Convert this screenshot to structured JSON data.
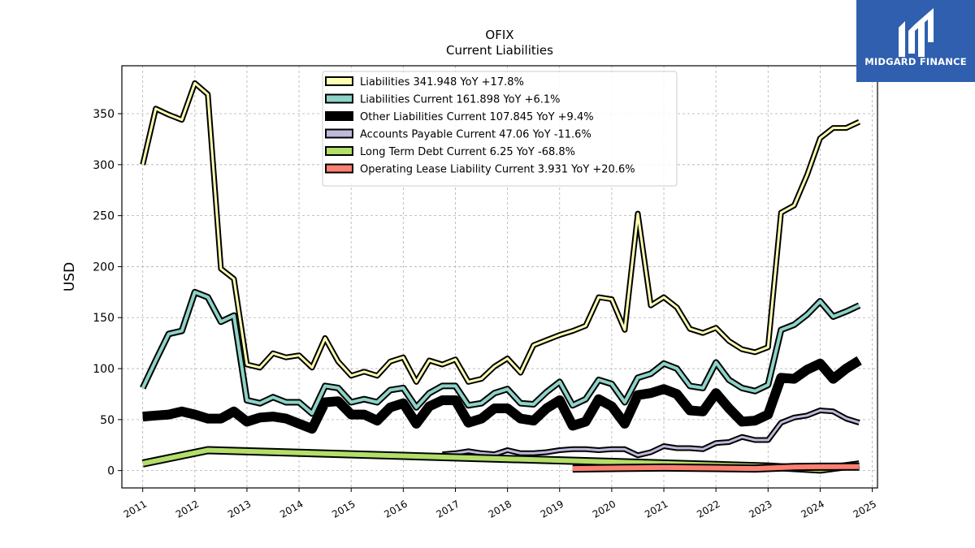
{
  "brand": {
    "name": "MIDGARD FINANCE",
    "logo_icon": "midgard-logo-icon",
    "color": "#2f5fae"
  },
  "chart_data": {
    "type": "line",
    "title": "OFIX",
    "subtitle": "Current  Liabilities",
    "xlabel": "",
    "ylabel": "USD",
    "xlim": [
      2010.6,
      2025.1
    ],
    "ylim": [
      -17,
      397
    ],
    "x_ticks": [
      "2011",
      "2012",
      "2013",
      "2014",
      "2015",
      "2016",
      "2017",
      "2018",
      "2019",
      "2020",
      "2021",
      "2022",
      "2023",
      "2024",
      "2025"
    ],
    "y_ticks": [
      "0",
      "50",
      "100",
      "150",
      "200",
      "250",
      "300",
      "350"
    ],
    "grid": true,
    "legend_position": "top-center",
    "series": [
      {
        "name": "Liabilities  341.948 YoY +17.8%",
        "color": "#ffffb3",
        "width": 3,
        "points": [
          [
            2011.0,
            300
          ],
          [
            2011.25,
            355
          ],
          [
            2011.5,
            349
          ],
          [
            2011.75,
            344
          ],
          [
            2012.0,
            380
          ],
          [
            2012.25,
            369
          ],
          [
            2012.5,
            198
          ],
          [
            2012.75,
            188
          ],
          [
            2013.0,
            104
          ],
          [
            2013.25,
            101
          ],
          [
            2013.5,
            115
          ],
          [
            2013.75,
            111
          ],
          [
            2014.0,
            113
          ],
          [
            2014.25,
            101
          ],
          [
            2014.5,
            130
          ],
          [
            2014.75,
            107
          ],
          [
            2015.0,
            93
          ],
          [
            2015.25,
            97
          ],
          [
            2015.5,
            93
          ],
          [
            2015.75,
            107
          ],
          [
            2016.0,
            111
          ],
          [
            2016.25,
            87
          ],
          [
            2016.5,
            108
          ],
          [
            2016.75,
            104
          ],
          [
            2017.0,
            109
          ],
          [
            2017.25,
            87
          ],
          [
            2017.5,
            90
          ],
          [
            2017.75,
            102
          ],
          [
            2018.0,
            110
          ],
          [
            2018.25,
            96
          ],
          [
            2018.5,
            123
          ],
          [
            2018.75,
            128
          ],
          [
            2019.0,
            133
          ],
          [
            2019.25,
            137
          ],
          [
            2019.5,
            142
          ],
          [
            2019.75,
            170
          ],
          [
            2020.0,
            168
          ],
          [
            2020.25,
            138
          ],
          [
            2020.5,
            252
          ],
          [
            2020.75,
            162
          ],
          [
            2021.0,
            170
          ],
          [
            2021.25,
            160
          ],
          [
            2021.5,
            139
          ],
          [
            2021.75,
            135
          ],
          [
            2022.0,
            140
          ],
          [
            2022.25,
            127
          ],
          [
            2022.5,
            119
          ],
          [
            2022.75,
            116
          ],
          [
            2023.0,
            121
          ],
          [
            2023.25,
            253
          ],
          [
            2023.5,
            260
          ],
          [
            2023.75,
            290
          ],
          [
            2024.0,
            326
          ],
          [
            2024.25,
            336
          ],
          [
            2024.5,
            336
          ],
          [
            2024.75,
            342
          ]
        ]
      },
      {
        "name": "Liabilities Current  161.898 YoY +6.1%",
        "color": "#8dd3c7",
        "width": 4,
        "points": [
          [
            2011.0,
            81
          ],
          [
            2011.25,
            108
          ],
          [
            2011.5,
            134
          ],
          [
            2011.75,
            137
          ],
          [
            2012.0,
            175
          ],
          [
            2012.25,
            170
          ],
          [
            2012.5,
            146
          ],
          [
            2012.75,
            152
          ],
          [
            2013.0,
            69
          ],
          [
            2013.25,
            66
          ],
          [
            2013.5,
            72
          ],
          [
            2013.75,
            67
          ],
          [
            2014.0,
            67
          ],
          [
            2014.25,
            56
          ],
          [
            2014.5,
            83
          ],
          [
            2014.75,
            81
          ],
          [
            2015.0,
            67
          ],
          [
            2015.25,
            70
          ],
          [
            2015.5,
            67
          ],
          [
            2015.75,
            79
          ],
          [
            2016.0,
            81
          ],
          [
            2016.25,
            62
          ],
          [
            2016.5,
            76
          ],
          [
            2016.75,
            83
          ],
          [
            2017.0,
            83
          ],
          [
            2017.25,
            64
          ],
          [
            2017.5,
            66
          ],
          [
            2017.75,
            76
          ],
          [
            2018.0,
            80
          ],
          [
            2018.25,
            66
          ],
          [
            2018.5,
            65
          ],
          [
            2018.75,
            77
          ],
          [
            2019.0,
            87
          ],
          [
            2019.25,
            64
          ],
          [
            2019.5,
            70
          ],
          [
            2019.75,
            89
          ],
          [
            2020.0,
            85
          ],
          [
            2020.25,
            67
          ],
          [
            2020.5,
            91
          ],
          [
            2020.75,
            95
          ],
          [
            2021.0,
            105
          ],
          [
            2021.25,
            100
          ],
          [
            2021.5,
            83
          ],
          [
            2021.75,
            81
          ],
          [
            2022.0,
            106
          ],
          [
            2022.25,
            89
          ],
          [
            2022.5,
            81
          ],
          [
            2022.75,
            78
          ],
          [
            2023.0,
            84
          ],
          [
            2023.25,
            138
          ],
          [
            2023.5,
            143
          ],
          [
            2023.75,
            153
          ],
          [
            2024.0,
            166
          ],
          [
            2024.25,
            151
          ],
          [
            2024.5,
            156
          ],
          [
            2024.75,
            162
          ]
        ]
      },
      {
        "name": "Other Liabilities Current  107.845 YoY +9.4%",
        "color": "#000000",
        "width": 8,
        "points": [
          [
            2011.0,
            53
          ],
          [
            2011.25,
            54
          ],
          [
            2011.5,
            55
          ],
          [
            2011.75,
            58
          ],
          [
            2012.0,
            55
          ],
          [
            2012.25,
            51
          ],
          [
            2012.5,
            51
          ],
          [
            2012.75,
            58
          ],
          [
            2013.0,
            48
          ],
          [
            2013.25,
            52
          ],
          [
            2013.5,
            53
          ],
          [
            2013.75,
            51
          ],
          [
            2014.0,
            46
          ],
          [
            2014.25,
            41
          ],
          [
            2014.5,
            67
          ],
          [
            2014.75,
            68
          ],
          [
            2015.0,
            55
          ],
          [
            2015.25,
            55
          ],
          [
            2015.5,
            49
          ],
          [
            2015.75,
            62
          ],
          [
            2016.0,
            66
          ],
          [
            2016.25,
            46
          ],
          [
            2016.5,
            63
          ],
          [
            2016.75,
            69
          ],
          [
            2017.0,
            69
          ],
          [
            2017.25,
            47
          ],
          [
            2017.5,
            51
          ],
          [
            2017.75,
            61
          ],
          [
            2018.0,
            61
          ],
          [
            2018.25,
            51
          ],
          [
            2018.5,
            49
          ],
          [
            2018.75,
            61
          ],
          [
            2019.0,
            69
          ],
          [
            2019.25,
            44
          ],
          [
            2019.5,
            48
          ],
          [
            2019.75,
            70
          ],
          [
            2020.0,
            63
          ],
          [
            2020.25,
            46
          ],
          [
            2020.5,
            74
          ],
          [
            2020.75,
            76
          ],
          [
            2021.0,
            80
          ],
          [
            2021.25,
            75
          ],
          [
            2021.5,
            59
          ],
          [
            2021.75,
            58
          ],
          [
            2022.0,
            76
          ],
          [
            2022.25,
            61
          ],
          [
            2022.5,
            48
          ],
          [
            2022.75,
            49
          ],
          [
            2023.0,
            55
          ],
          [
            2023.25,
            91
          ],
          [
            2023.5,
            90
          ],
          [
            2023.75,
            99
          ],
          [
            2024.0,
            105
          ],
          [
            2024.25,
            90
          ],
          [
            2024.5,
            100
          ],
          [
            2024.75,
            108
          ]
        ]
      },
      {
        "name": "Accounts Payable Current  47.06 YoY -11.6%",
        "color": "#bebada",
        "width": 3,
        "points": [
          [
            2016.75,
            16
          ],
          [
            2017.0,
            17
          ],
          [
            2017.25,
            19
          ],
          [
            2017.5,
            17
          ],
          [
            2017.75,
            16
          ],
          [
            2018.0,
            20
          ],
          [
            2018.25,
            17
          ],
          [
            2018.5,
            17
          ],
          [
            2018.75,
            18
          ],
          [
            2019.0,
            20
          ],
          [
            2019.25,
            21
          ],
          [
            2019.5,
            21
          ],
          [
            2019.75,
            20
          ],
          [
            2020.0,
            21
          ],
          [
            2020.25,
            21
          ],
          [
            2020.5,
            15
          ],
          [
            2020.75,
            18
          ],
          [
            2021.0,
            24
          ],
          [
            2021.25,
            22
          ],
          [
            2021.5,
            22
          ],
          [
            2021.75,
            21
          ],
          [
            2022.0,
            27
          ],
          [
            2022.25,
            28
          ],
          [
            2022.5,
            33
          ],
          [
            2022.75,
            30
          ],
          [
            2023.0,
            30
          ],
          [
            2023.25,
            47
          ],
          [
            2023.5,
            52
          ],
          [
            2023.75,
            54
          ],
          [
            2024.0,
            59
          ],
          [
            2024.25,
            58
          ],
          [
            2024.5,
            51
          ],
          [
            2024.75,
            47
          ]
        ]
      },
      {
        "name": "Long Term Debt Current  6.25 YoY -68.8%",
        "color": "#b3de69",
        "width": 6,
        "points": [
          [
            2011.0,
            7
          ],
          [
            2012.25,
            20
          ],
          [
            2023.0,
            4
          ],
          [
            2024.0,
            1
          ],
          [
            2024.75,
            6
          ]
        ]
      },
      {
        "name": "Operating Lease Liability Current  3.931 YoY +20.6%",
        "color": "#fb8072",
        "width": 6,
        "points": [
          [
            2019.25,
            2
          ],
          [
            2020.0,
            2.5
          ],
          [
            2021.0,
            3
          ],
          [
            2022.0,
            2.5
          ],
          [
            2022.75,
            2
          ],
          [
            2023.0,
            2.5
          ],
          [
            2023.5,
            3.5
          ],
          [
            2024.0,
            3.8
          ],
          [
            2024.75,
            3.9
          ]
        ]
      }
    ]
  }
}
